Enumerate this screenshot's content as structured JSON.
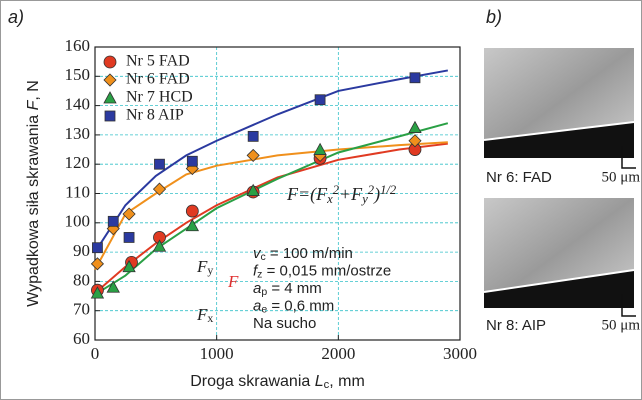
{
  "chart_data": {
    "type": "scatter",
    "panel_a": "a)",
    "panel_b": "b)",
    "ylabel_parts": [
      "Wypadkowa siła skrawania ",
      "F",
      ", N"
    ],
    "xlabel_parts": [
      "Droga skrawania ",
      "L",
      "c",
      ", mm"
    ],
    "xlim": [
      0,
      3000
    ],
    "ylim": [
      60,
      160
    ],
    "xticks": [
      0,
      1000,
      2000,
      3000
    ],
    "yticks": [
      60,
      70,
      80,
      90,
      100,
      110,
      120,
      130,
      140,
      150,
      160
    ],
    "grid": true,
    "legend": "top-left",
    "fit_x": [
      0,
      250,
      500,
      750,
      1000,
      1500,
      2000,
      2500,
      2900
    ],
    "series": [
      {
        "name": "Nr 5 FAD",
        "color": "#e03a22",
        "marker": "circle",
        "x": [
          20,
          300,
          530,
          800,
          1300,
          1850,
          2630
        ],
        "values": [
          77,
          86.5,
          95,
          104,
          110.5,
          122,
          125
        ],
        "fit": [
          76,
          85,
          93,
          100,
          106,
          115.5,
          121.5,
          125,
          127
        ]
      },
      {
        "name": "Nr 6 FAD",
        "color": "#f0901c",
        "marker": "diamond",
        "x": [
          20,
          150,
          280,
          530,
          800,
          1300,
          1850,
          2630
        ],
        "values": [
          86,
          98,
          103,
          111.5,
          118.5,
          123,
          123,
          128
        ],
        "fit": [
          84,
          103,
          110,
          116.5,
          119.5,
          123,
          125,
          126.5,
          127.5
        ]
      },
      {
        "name": "Nr 7 HCD",
        "color": "#2aa045",
        "marker": "triangle",
        "x": [
          20,
          150,
          280,
          530,
          800,
          1300,
          1850,
          2630
        ],
        "values": [
          76,
          78,
          85,
          92,
          99,
          111,
          125,
          132.5
        ],
        "fit": [
          75.5,
          82,
          91,
          98,
          105,
          115,
          124,
          129.5,
          134
        ]
      },
      {
        "name": "Nr 8 AIP",
        "color": "#2b3aa0",
        "marker": "square",
        "x": [
          20,
          150,
          280,
          530,
          800,
          1300,
          1850,
          2630
        ],
        "values": [
          91.5,
          100.5,
          95,
          120,
          121,
          129.5,
          142,
          149.5
        ],
        "fit": [
          90,
          106,
          116,
          123,
          128,
          137,
          145,
          149,
          152
        ]
      }
    ],
    "formula_parts": [
      "F=(F",
      "x",
      "2",
      "+F",
      "y",
      "2",
      ")",
      "1/2"
    ],
    "conditions": [
      [
        "v",
        "c",
        " = 100 m/min"
      ],
      [
        "f",
        "z",
        " = 0,015 mm/ostrze"
      ],
      [
        "a",
        "p",
        " = 4 mm"
      ],
      [
        "a",
        "e",
        " = 0,6 mm"
      ],
      [
        "Na sucho"
      ]
    ],
    "inset_labels": [
      [
        "F",
        "y"
      ],
      [
        "F"
      ],
      [
        "F",
        "x"
      ]
    ],
    "images": [
      {
        "caption": "Nr 6: FAD",
        "scale": "50 μm"
      },
      {
        "caption": "Nr 8: AIP",
        "scale": "50 μm"
      }
    ]
  }
}
